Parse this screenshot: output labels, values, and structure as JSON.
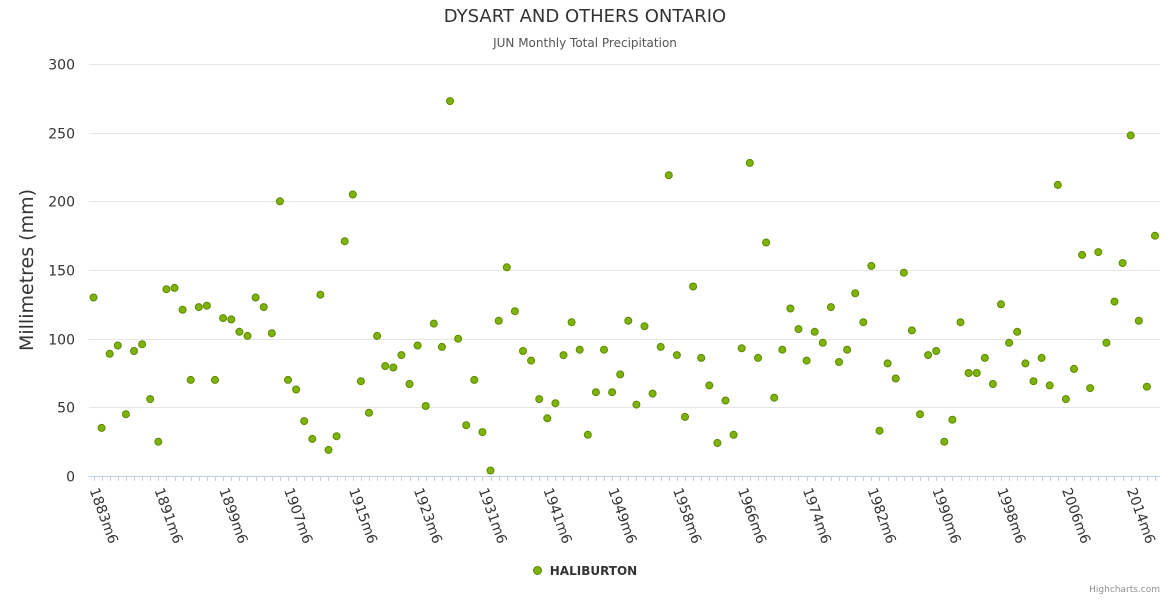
{
  "chart_data": {
    "type": "scatter",
    "title": "DYSART AND OTHERS ONTARIO",
    "subtitle": "JUN Monthly Total Precipitation",
    "ylabel": "Millimetres (mm)",
    "xlabel": "",
    "ylim": [
      0,
      300
    ],
    "yticks": [
      0,
      50,
      100,
      150,
      200,
      250,
      300
    ],
    "grid": true,
    "legend_position": "bottom-center",
    "x_tick_labels": [
      "1883m6",
      "1891m6",
      "1899m6",
      "1907m6",
      "1915m6",
      "1923m6",
      "1931m6",
      "1941m6",
      "1949m6",
      "1958m6",
      "1966m6",
      "1974m6",
      "1982m6",
      "1990m6",
      "1998m6",
      "2006m6",
      "2014m6"
    ],
    "series": [
      {
        "name": "HALIBURTON",
        "color": "#7fb30a",
        "values": [
          130,
          35,
          89,
          95,
          45,
          91,
          96,
          56,
          25,
          136,
          137,
          121,
          70,
          123,
          124,
          70,
          115,
          114,
          105,
          102,
          130,
          123,
          104,
          200,
          70,
          63,
          40,
          27,
          132,
          19,
          29,
          171,
          205,
          69,
          46,
          102,
          80,
          79,
          88,
          67,
          95,
          51,
          111,
          94,
          273,
          100,
          37,
          70,
          32,
          4,
          113,
          152,
          120,
          91,
          84,
          56,
          42,
          53,
          88,
          112,
          92,
          30,
          61,
          92,
          61,
          74,
          113,
          52,
          109,
          60,
          94,
          219,
          88,
          43,
          138,
          86,
          66,
          24,
          55,
          30,
          93,
          228,
          86,
          170,
          57,
          92,
          122,
          107,
          84,
          105,
          97,
          123,
          83,
          92,
          133,
          112,
          153,
          33,
          82,
          71,
          148,
          106,
          45,
          88,
          91,
          25,
          41,
          112,
          75,
          75,
          86,
          67,
          125,
          97,
          105,
          82,
          69,
          86,
          66,
          212,
          56,
          78,
          161,
          64,
          163,
          97,
          127,
          155,
          248,
          113,
          65,
          175
        ]
      }
    ]
  },
  "credits": "Highcharts.com"
}
